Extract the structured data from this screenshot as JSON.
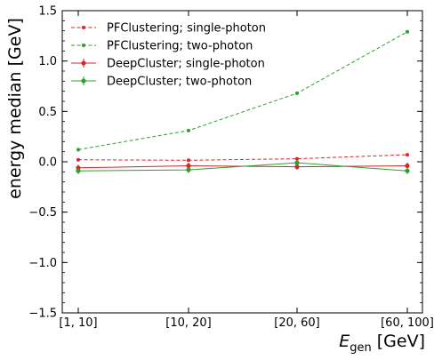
{
  "chart_data": {
    "type": "line",
    "categories": [
      "[1, 10]",
      "[10, 20]",
      "[20, 60]",
      "[60, 100]"
    ],
    "xlabel": "E",
    "xlabel_sub": "gen",
    "xlabel_unit": " [GeV]",
    "ylabel": "energy median [GeV]",
    "ylim": [
      -1.5,
      1.5
    ],
    "yticks": [
      1.5,
      1.0,
      0.5,
      0.0,
      -0.5,
      -1.0,
      -1.5
    ],
    "ytick_labels": [
      "1.5",
      "1.0",
      "0.5",
      "0.0",
      "−0.5",
      "−1.0",
      "−1.5"
    ],
    "grid": false,
    "legend_position": "top-left",
    "series": [
      {
        "name": "PFClustering; single-photon",
        "color": "#d62728",
        "style": "dashed",
        "marker": "dot",
        "errorbars": false,
        "values": [
          0.02,
          0.015,
          0.03,
          0.07
        ]
      },
      {
        "name": "PFClustering; two-photon",
        "color": "#2ca02c",
        "style": "dashed",
        "marker": "dot",
        "errorbars": false,
        "values": [
          0.12,
          0.31,
          0.68,
          1.29
        ]
      },
      {
        "name": "DeepCluster; single-photon",
        "color": "#d62728",
        "style": "solid",
        "marker": "dot",
        "errorbars": true,
        "values": [
          -0.06,
          -0.04,
          -0.05,
          -0.04
        ]
      },
      {
        "name": "DeepCluster; two-photon",
        "color": "#2ca02c",
        "style": "solid",
        "marker": "dot",
        "errorbars": true,
        "values": [
          -0.09,
          -0.08,
          -0.01,
          -0.09
        ]
      }
    ]
  }
}
